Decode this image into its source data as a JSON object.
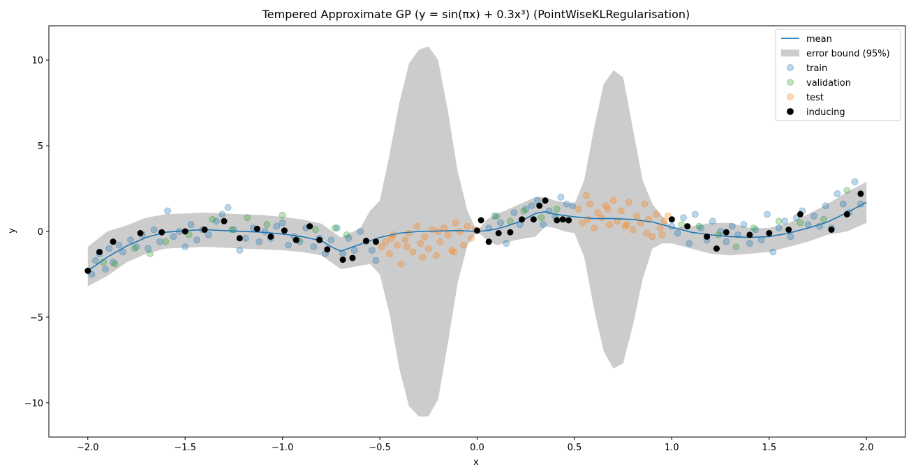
{
  "chart_data": {
    "type": "scatter",
    "title": "Tempered Approximate GP (y = sin(πx) + 0.3x³) (PointWiseKLRegularisation)",
    "xlabel": "x",
    "ylabel": "y",
    "xlim": [
      -2.2,
      2.2
    ],
    "ylim": [
      -12,
      12
    ],
    "xticks": [
      -2.0,
      -1.5,
      -1.0,
      -0.5,
      0.0,
      0.5,
      1.0,
      1.5,
      2.0
    ],
    "xtick_labels": [
      "−2.0",
      "−1.5",
      "−1.0",
      "−0.5",
      "0.0",
      "0.5",
      "1.0",
      "1.5",
      "2.0"
    ],
    "yticks": [
      -10,
      -5,
      0,
      5,
      10
    ],
    "ytick_labels": [
      "−10",
      "−5",
      "0",
      "5",
      "10"
    ],
    "grid": false,
    "legend_position": "top-right",
    "colors": {
      "mean": "#1f77b4",
      "error_band": "#cccccc",
      "train": "#1f77b4",
      "validation": "#2ca02c",
      "test": "#ff7f0e",
      "inducing": "#000000"
    },
    "legend": [
      {
        "key": "mean",
        "label": "mean",
        "kind": "line"
      },
      {
        "key": "error_band",
        "label": "error bound (95%)",
        "kind": "patch"
      },
      {
        "key": "train",
        "label": "train",
        "kind": "marker"
      },
      {
        "key": "validation",
        "label": "validation",
        "kind": "marker"
      },
      {
        "key": "test",
        "label": "test",
        "kind": "marker"
      },
      {
        "key": "inducing",
        "label": "inducing",
        "kind": "marker"
      }
    ],
    "mean_curve": {
      "x": [
        -2.0,
        -1.9,
        -1.8,
        -1.7,
        -1.6,
        -1.5,
        -1.4,
        -1.3,
        -1.2,
        -1.1,
        -1.0,
        -0.9,
        -0.8,
        -0.75,
        -0.7,
        -0.65,
        -0.6,
        -0.55,
        -0.5,
        -0.4,
        -0.3,
        -0.2,
        -0.1,
        0.0,
        0.05,
        0.1,
        0.15,
        0.2,
        0.25,
        0.3,
        0.35,
        0.4,
        0.5,
        0.6,
        0.7,
        0.8,
        0.9,
        1.0,
        1.05,
        1.1,
        1.2,
        1.3,
        1.4,
        1.5,
        1.6,
        1.7,
        1.8,
        1.9,
        2.0
      ],
      "y": [
        -2.3,
        -1.5,
        -0.85,
        -0.35,
        -0.05,
        0.05,
        0.1,
        0.05,
        0.0,
        -0.05,
        -0.15,
        -0.3,
        -0.55,
        -0.9,
        -1.15,
        -0.95,
        -0.75,
        -0.55,
        -0.35,
        -0.1,
        0.0,
        0.02,
        0.05,
        0.0,
        0.05,
        0.15,
        0.3,
        0.5,
        0.75,
        1.05,
        1.15,
        1.0,
        0.85,
        0.75,
        0.75,
        0.7,
        0.55,
        0.25,
        0.1,
        -0.05,
        -0.2,
        -0.3,
        -0.35,
        -0.3,
        -0.1,
        0.2,
        0.55,
        1.1,
        1.7
      ]
    },
    "error_band": {
      "x": [
        -2.0,
        -1.9,
        -1.8,
        -1.7,
        -1.6,
        -1.5,
        -1.4,
        -1.3,
        -1.2,
        -1.1,
        -1.0,
        -0.9,
        -0.8,
        -0.7,
        -0.6,
        -0.55,
        -0.5,
        -0.45,
        -0.4,
        -0.35,
        -0.3,
        -0.25,
        -0.2,
        -0.15,
        -0.1,
        -0.05,
        0.0,
        0.05,
        0.1,
        0.2,
        0.3,
        0.35,
        0.4,
        0.45,
        0.5,
        0.55,
        0.6,
        0.65,
        0.7,
        0.75,
        0.8,
        0.85,
        0.9,
        0.95,
        1.0,
        1.1,
        1.2,
        1.3,
        1.4,
        1.5,
        1.6,
        1.7,
        1.8,
        1.9,
        2.0
      ],
      "upper": [
        -0.9,
        0.0,
        0.35,
        0.8,
        1.0,
        1.05,
        1.1,
        1.05,
        1.0,
        0.95,
        0.85,
        0.7,
        0.45,
        -0.35,
        0.2,
        1.2,
        1.8,
        4.5,
        7.5,
        9.8,
        10.6,
        10.8,
        10.0,
        7.0,
        3.5,
        1.2,
        0.0,
        0.7,
        1.0,
        1.5,
        2.0,
        2.0,
        1.8,
        1.7,
        1.6,
        3.0,
        6.0,
        8.6,
        9.4,
        9.0,
        6.0,
        3.0,
        1.6,
        0.9,
        0.2,
        0.3,
        0.5,
        0.5,
        0.2,
        0.2,
        0.5,
        1.0,
        1.6,
        2.3,
        2.9
      ],
      "lower": [
        -3.2,
        -2.6,
        -1.8,
        -1.3,
        -1.0,
        -0.95,
        -0.9,
        -0.95,
        -1.0,
        -1.05,
        -1.1,
        -1.2,
        -1.4,
        -2.2,
        -2.0,
        -1.9,
        -2.5,
        -4.8,
        -8.0,
        -10.2,
        -10.8,
        -10.8,
        -9.8,
        -6.5,
        -3.0,
        -0.8,
        0.0,
        -0.5,
        -0.8,
        -0.5,
        -0.3,
        0.3,
        0.2,
        0.0,
        -0.1,
        -1.5,
        -4.5,
        -7.0,
        -8.0,
        -7.7,
        -5.5,
        -2.8,
        -1.0,
        -0.7,
        -0.7,
        -1.0,
        -1.3,
        -1.4,
        -1.3,
        -1.2,
        -0.9,
        -0.6,
        -0.2,
        0.0,
        0.5
      ]
    },
    "series": {
      "train": {
        "x": [
          -1.98,
          -1.96,
          -1.94,
          -1.91,
          -1.89,
          -1.87,
          -1.84,
          -1.82,
          -1.78,
          -1.75,
          -1.72,
          -1.69,
          -1.66,
          -1.63,
          -1.59,
          -1.56,
          -1.53,
          -1.5,
          -1.47,
          -1.44,
          -1.41,
          -1.38,
          -1.34,
          -1.31,
          -1.28,
          -1.25,
          -1.22,
          -1.19,
          -1.15,
          -1.12,
          -1.09,
          -1.06,
          -1.03,
          -1.0,
          -0.97,
          -0.94,
          -0.91,
          -0.88,
          -0.84,
          -0.81,
          -0.78,
          -0.75,
          -0.72,
          -0.69,
          -0.66,
          -0.63,
          -0.6,
          -0.57,
          -0.54,
          -0.52,
          0.06,
          0.09,
          0.12,
          0.15,
          0.19,
          0.22,
          0.25,
          0.28,
          0.31,
          0.34,
          0.37,
          0.4,
          0.43,
          0.46,
          0.49,
          1.0,
          1.03,
          1.06,
          1.09,
          1.12,
          1.15,
          1.18,
          1.21,
          1.25,
          1.28,
          1.31,
          1.34,
          1.37,
          1.4,
          1.43,
          1.46,
          1.49,
          1.52,
          1.55,
          1.58,
          1.61,
          1.64,
          1.67,
          1.7,
          1.73,
          1.76,
          1.79,
          1.82,
          1.85,
          1.88,
          1.91,
          1.94,
          1.97
        ],
        "y": [
          -2.5,
          -1.7,
          -1.3,
          -2.2,
          -1.0,
          -1.8,
          -0.8,
          -1.2,
          -0.5,
          -0.9,
          -0.2,
          -1.0,
          0.1,
          -0.6,
          1.2,
          -0.3,
          0.0,
          -0.9,
          0.4,
          -0.5,
          0.1,
          -0.2,
          0.6,
          1.0,
          1.4,
          0.1,
          -1.1,
          -0.4,
          0.2,
          -0.6,
          0.0,
          -0.4,
          0.3,
          0.5,
          -0.8,
          -0.3,
          -0.6,
          0.2,
          -0.9,
          -0.4,
          -1.3,
          -0.5,
          0.2,
          -1.3,
          -0.4,
          -1.1,
          0.0,
          -0.6,
          -1.1,
          -1.7,
          0.2,
          0.9,
          0.5,
          -0.7,
          1.1,
          0.4,
          1.3,
          1.5,
          1.8,
          0.4,
          1.2,
          0.9,
          2.0,
          1.6,
          1.5,
          0.3,
          -0.1,
          0.8,
          -0.7,
          1.0,
          0.2,
          -0.5,
          0.6,
          0.0,
          -0.6,
          0.3,
          -0.2,
          0.4,
          -0.7,
          0.1,
          -0.5,
          1.0,
          -1.2,
          0.2,
          0.6,
          -0.3,
          0.8,
          1.2,
          0.4,
          0.9,
          0.3,
          1.5,
          0.2,
          2.2,
          1.6,
          1.1,
          2.9,
          1.6
        ]
      },
      "validation": {
        "x": [
          -1.92,
          -1.86,
          -1.76,
          -1.68,
          -1.6,
          -1.48,
          -1.36,
          -1.26,
          -1.18,
          -1.08,
          -1.0,
          -0.92,
          -0.83,
          -0.73,
          -0.67,
          0.1,
          0.17,
          0.24,
          0.33,
          0.41,
          1.05,
          1.14,
          1.24,
          1.33,
          1.42,
          1.55,
          1.66,
          1.78,
          1.9
        ],
        "y": [
          -1.8,
          -1.9,
          -1.0,
          -1.3,
          -0.6,
          -0.2,
          0.7,
          0.1,
          0.8,
          0.4,
          0.95,
          -0.5,
          0.1,
          0.2,
          -0.2,
          0.9,
          0.6,
          1.2,
          0.8,
          1.3,
          0.4,
          0.3,
          -0.2,
          -0.9,
          0.2,
          0.6,
          0.5,
          0.7,
          2.4
        ]
      },
      "test": {
        "x": [
          -0.49,
          -0.47,
          -0.45,
          -0.43,
          -0.41,
          -0.39,
          -0.37,
          -0.35,
          -0.33,
          -0.31,
          -0.29,
          -0.27,
          -0.25,
          -0.23,
          -0.21,
          -0.19,
          -0.17,
          -0.15,
          -0.13,
          -0.11,
          -0.09,
          -0.07,
          -0.05,
          -0.03,
          -0.01,
          0.52,
          0.54,
          0.56,
          0.58,
          0.6,
          0.62,
          0.64,
          0.66,
          0.68,
          0.7,
          0.72,
          0.74,
          0.76,
          0.78,
          0.8,
          0.82,
          0.84,
          0.86,
          0.88,
          0.9,
          0.92,
          0.94,
          0.96,
          0.98,
          -0.44,
          -0.36,
          -0.28,
          -0.2,
          -0.12,
          0.57,
          0.67,
          0.77,
          0.87,
          0.95
        ],
        "y": [
          -0.9,
          -0.6,
          -1.3,
          -0.2,
          -0.8,
          -1.9,
          -0.5,
          -0.1,
          -1.2,
          0.3,
          -0.7,
          -0.3,
          -1.0,
          0.1,
          -1.4,
          -0.6,
          0.2,
          -0.2,
          -1.1,
          0.5,
          0.0,
          -0.8,
          0.3,
          -0.4,
          0.1,
          1.3,
          0.5,
          2.1,
          1.6,
          0.2,
          1.1,
          0.8,
          1.5,
          0.4,
          1.8,
          0.6,
          1.2,
          0.3,
          1.7,
          0.1,
          0.9,
          0.5,
          1.6,
          0.7,
          -0.3,
          1.0,
          0.2,
          0.6,
          0.9,
          -0.4,
          -0.9,
          -1.5,
          0.0,
          -1.2,
          0.7,
          1.3,
          0.4,
          -0.1,
          -0.2
        ]
      },
      "inducing": {
        "x": [
          -2.0,
          -1.94,
          -1.87,
          -1.73,
          -1.62,
          -1.5,
          -1.4,
          -1.3,
          -1.22,
          -1.13,
          -1.06,
          -0.99,
          -0.93,
          -0.86,
          -0.81,
          -0.77,
          -0.69,
          -0.64,
          -0.57,
          -0.52,
          0.0,
          0.02,
          0.06,
          0.11,
          0.17,
          0.23,
          0.29,
          0.32,
          0.35,
          0.41,
          0.44,
          0.47,
          1.0,
          1.08,
          1.18,
          1.23,
          1.28,
          1.4,
          1.5,
          1.6,
          1.66,
          1.82,
          1.9,
          1.97
        ],
        "y": [
          -2.3,
          -1.2,
          -0.6,
          -0.1,
          -0.05,
          0.0,
          0.1,
          0.6,
          -0.4,
          0.15,
          -0.3,
          0.05,
          -0.5,
          0.3,
          -0.5,
          -1.05,
          -1.65,
          -1.55,
          -0.55,
          -0.6,
          0.05,
          0.65,
          -0.6,
          -0.1,
          -0.05,
          0.7,
          0.7,
          1.5,
          1.8,
          0.65,
          0.7,
          0.65,
          0.7,
          0.3,
          -0.3,
          -1.0,
          -0.05,
          -0.2,
          -0.1,
          0.1,
          1.0,
          0.1,
          1.0,
          2.2
        ]
      }
    }
  }
}
